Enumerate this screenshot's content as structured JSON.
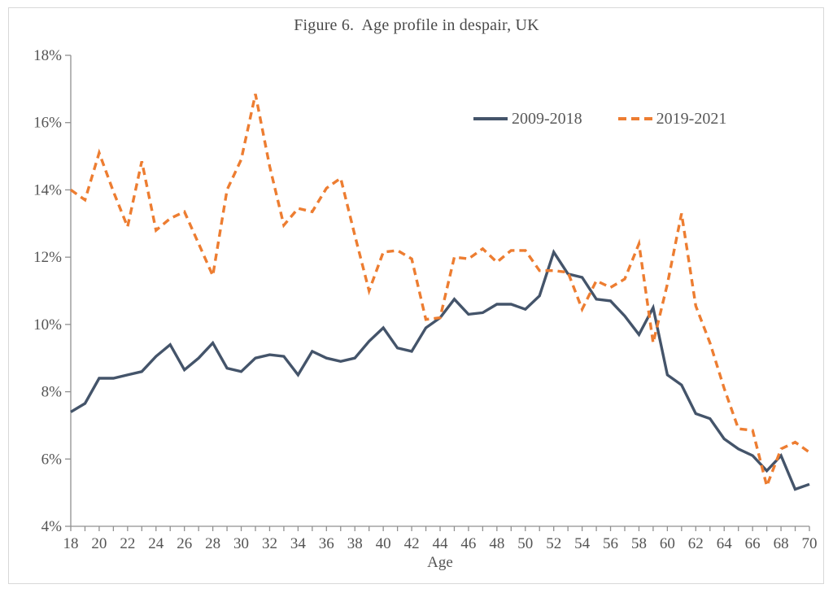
{
  "figure": {
    "title": "Figure 6.  Age profile in despair, UK",
    "x_axis_label": "Age"
  },
  "legend": {
    "items": [
      {
        "label": "2009-2018",
        "style": "solid",
        "color": "#44546A"
      },
      {
        "label": "2019-2021",
        "style": "dashed",
        "color": "#ED7D31"
      }
    ]
  },
  "chart_data": {
    "type": "line",
    "title": "Figure 6. Age profile in despair, UK",
    "xlabel": "Age",
    "ylabel": "",
    "grid": false,
    "legend_position": "upper-right-inside",
    "xlim": [
      18,
      70
    ],
    "ylim_percent": [
      4,
      18
    ],
    "x_ticks": [
      18,
      20,
      22,
      24,
      26,
      28,
      30,
      32,
      34,
      36,
      38,
      40,
      42,
      44,
      46,
      48,
      50,
      52,
      54,
      56,
      58,
      60,
      62,
      64,
      66,
      68,
      70
    ],
    "x_minor_tick_step": 1,
    "y_ticks_percent": [
      4,
      6,
      8,
      10,
      12,
      14,
      16,
      18
    ],
    "y_tick_suffix": "%",
    "x": [
      18,
      19,
      20,
      21,
      22,
      23,
      24,
      25,
      26,
      27,
      28,
      29,
      30,
      31,
      32,
      33,
      34,
      35,
      36,
      37,
      38,
      39,
      40,
      41,
      42,
      43,
      44,
      45,
      46,
      47,
      48,
      49,
      50,
      51,
      52,
      53,
      54,
      55,
      56,
      57,
      58,
      59,
      60,
      61,
      62,
      63,
      64,
      65,
      66,
      67,
      68,
      69,
      70
    ],
    "series": [
      {
        "name": "2009-2018",
        "color": "#44546A",
        "style": "solid",
        "values_percent": [
          7.4,
          7.65,
          8.4,
          8.4,
          8.5,
          8.6,
          9.05,
          9.4,
          8.65,
          9.0,
          9.45,
          8.7,
          8.6,
          9.0,
          9.1,
          9.05,
          8.5,
          9.2,
          9.0,
          8.9,
          9.0,
          9.5,
          9.9,
          9.3,
          9.2,
          9.9,
          10.2,
          10.75,
          10.3,
          10.35,
          10.6,
          10.6,
          10.45,
          10.85,
          12.15,
          11.5,
          11.4,
          10.75,
          10.7,
          10.25,
          9.7,
          10.5,
          8.5,
          8.2,
          7.35,
          7.2,
          6.6,
          6.3,
          6.1,
          5.65,
          6.1,
          5.1,
          5.25
        ]
      },
      {
        "name": "2019-2021",
        "color": "#ED7D31",
        "style": "dashed",
        "values_percent": [
          14.0,
          13.7,
          15.1,
          13.95,
          12.9,
          14.85,
          12.8,
          13.15,
          13.35,
          12.4,
          11.45,
          14.0,
          14.9,
          16.85,
          14.7,
          12.95,
          13.45,
          13.35,
          14.05,
          14.35,
          12.65,
          11.0,
          12.15,
          12.2,
          11.95,
          10.15,
          10.2,
          12.0,
          11.95,
          12.25,
          11.85,
          12.2,
          12.2,
          11.6,
          11.6,
          11.55,
          10.45,
          11.3,
          11.1,
          11.35,
          12.4,
          9.45,
          11.2,
          13.3,
          10.55,
          9.45,
          8.1,
          6.9,
          6.85,
          5.2,
          6.3,
          6.5,
          6.2
        ]
      }
    ]
  }
}
